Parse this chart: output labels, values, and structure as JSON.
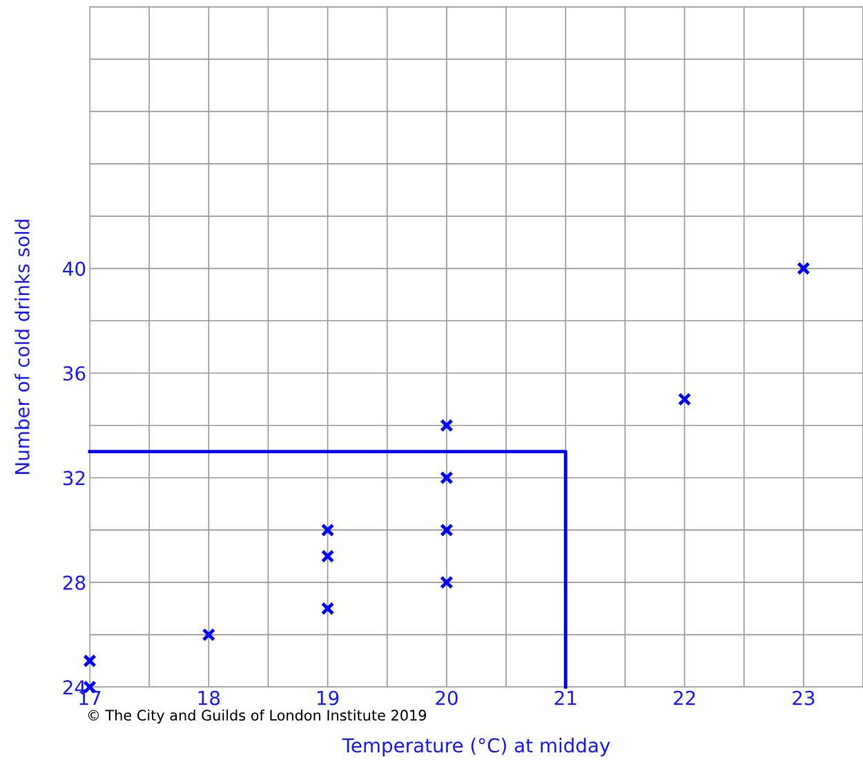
{
  "chart_data": {
    "type": "scatter",
    "xlabel": "Temperature (°C) at midday",
    "ylabel": "Number of cold drinks sold",
    "series": [
      {
        "color": "#0000ff",
        "marker": "cross",
        "x": [
          17,
          17,
          18,
          19,
          19,
          19,
          20,
          20,
          20,
          20,
          22,
          23
        ],
        "values": [
          25,
          24,
          26,
          30,
          29,
          27,
          34,
          32,
          30,
          28,
          35,
          40
        ]
      },
      {
        "type": "line",
        "color": "#0000ff",
        "marker": "none",
        "line_style": "solid",
        "x": [
          17,
          21,
          21
        ],
        "values": [
          33,
          33,
          24
        ]
      }
    ],
    "xlim": [
      17,
      23.5
    ],
    "ylim": [
      24,
      50
    ],
    "xticks": [
      17,
      {
        "value": 17.5,
        "label": null
      },
      18,
      {
        "value": 18.5,
        "label": null
      },
      19,
      {
        "value": 19.5,
        "label": null
      },
      20,
      {
        "value": 20.5,
        "label": null
      },
      21,
      {
        "value": 21.5,
        "label": null
      },
      22,
      {
        "value": 22.5,
        "label": null
      },
      23,
      {
        "value": 23.5,
        "label": null
      }
    ],
    "yticks": [
      24,
      {
        "value": 26,
        "label": null
      },
      28,
      {
        "value": 30,
        "label": null
      },
      32,
      {
        "value": 34,
        "label": null
      },
      36,
      {
        "value": 38,
        "label": null
      },
      40,
      {
        "value": 42,
        "label": null
      },
      {
        "value": 44,
        "label": null
      },
      {
        "value": 46,
        "label": null
      },
      {
        "value": 48,
        "label": null
      },
      {
        "value": 50,
        "label": null
      }
    ],
    "grid": true,
    "annotations": [
      "© The City and Guilds of London Institute 2019"
    ]
  }
}
